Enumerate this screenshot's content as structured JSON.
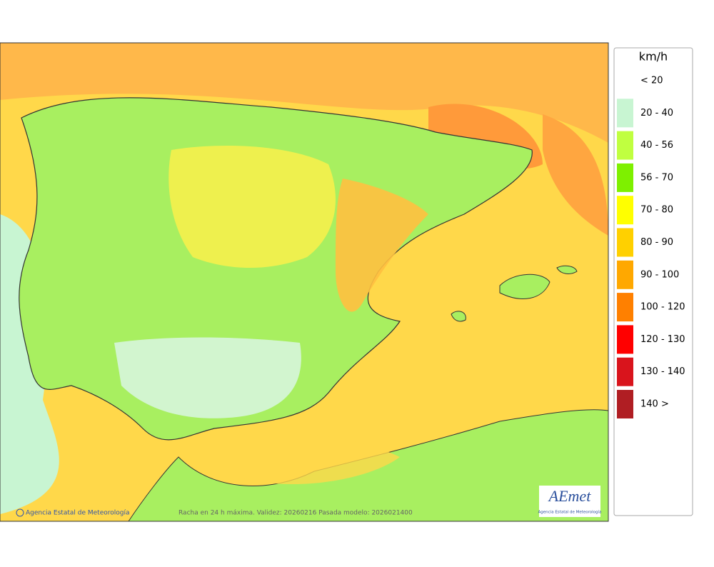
{
  "legend": {
    "title": "km/h",
    "items": [
      {
        "label": "< 20",
        "color": "#ffffff"
      },
      {
        "label": "20 - 40",
        "color": "#c8f5d2"
      },
      {
        "label": "40 - 56",
        "color": "#c0ff40"
      },
      {
        "label": "56 - 70",
        "color": "#7ef000"
      },
      {
        "label": "70 - 80",
        "color": "#ffff00"
      },
      {
        "label": "80 - 90",
        "color": "#ffd000"
      },
      {
        "label": "90 - 100",
        "color": "#ffa800"
      },
      {
        "label": "100 - 120",
        "color": "#ff8000"
      },
      {
        "label": "120 - 130",
        "color": "#ff0000"
      },
      {
        "label": "130 - 140",
        "color": "#d9141c"
      },
      {
        "label": "140 >",
        "color": "#b01e23"
      }
    ]
  },
  "footer": {
    "credit": "Agencia Estatal de Meteorología",
    "caption": "Racha en 24 h máxima. Validez: 20260216 Pasada modelo: 2026021400"
  },
  "logo": {
    "name": "AEmet",
    "subtitle": "Agencia Estatal de Meteorología"
  }
}
